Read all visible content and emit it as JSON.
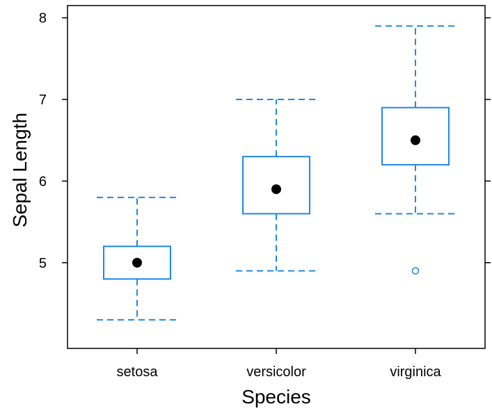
{
  "chart_data": {
    "type": "boxplot",
    "title": "",
    "xlabel": "Species",
    "ylabel": "Sepal Length",
    "categories": [
      "setosa",
      "versicolor",
      "virginica"
    ],
    "ylim": [
      3.95,
      8.15
    ],
    "yticks": [
      5,
      6,
      7,
      8
    ],
    "grid": false,
    "box_color": "#1e88e5",
    "median_color": "#000000",
    "boxes": [
      {
        "category": "setosa",
        "whisker_low": 4.3,
        "q1": 4.8,
        "median": 5.0,
        "q3": 5.2,
        "whisker_high": 5.8,
        "outliers": []
      },
      {
        "category": "versicolor",
        "whisker_low": 4.9,
        "q1": 5.6,
        "median": 5.9,
        "q3": 6.3,
        "whisker_high": 7.0,
        "outliers": []
      },
      {
        "category": "virginica",
        "whisker_low": 5.6,
        "q1": 6.2,
        "median": 6.5,
        "q3": 6.9,
        "whisker_high": 7.9,
        "outliers": [
          4.9
        ]
      }
    ]
  }
}
